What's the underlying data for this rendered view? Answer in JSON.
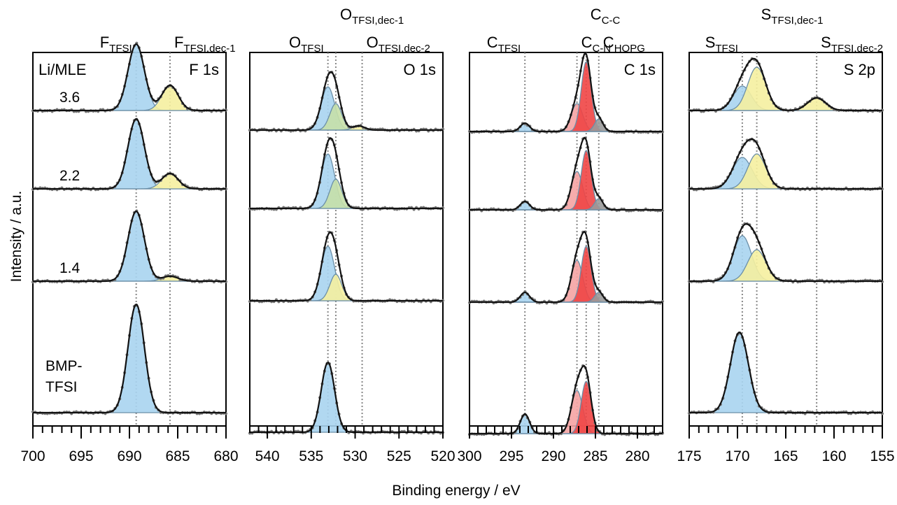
{
  "figure": {
    "ylabel": "Intensity / a.u.",
    "xlabel": "Binding energy / eV"
  },
  "chart_data": [
    {
      "type": "line",
      "panel": "F 1s",
      "title": "F 1s",
      "reversed_x": true,
      "xlim": [
        700,
        680
      ],
      "xticks": [
        700,
        695,
        690,
        685,
        680
      ],
      "grid": false,
      "corner_label": "Li/MLE",
      "ref_lines": [
        {
          "x": 689.3,
          "label": "F",
          "sub": "TFSI"
        },
        {
          "x": 685.8,
          "label": "F",
          "sub": "TFSI,dec-1"
        }
      ],
      "traces": [
        {
          "sample": "3.6",
          "components": [
            {
              "center": 689.3,
              "fwhm": 2.0,
              "height": 0.95,
              "fill": "blue"
            },
            {
              "center": 685.8,
              "fwhm": 2.0,
              "height": 0.36,
              "fill": "yellow"
            }
          ]
        },
        {
          "sample": "2.2",
          "components": [
            {
              "center": 689.3,
              "fwhm": 2.0,
              "height": 1.0,
              "fill": "blue"
            },
            {
              "center": 685.8,
              "fwhm": 2.0,
              "height": 0.22,
              "fill": "yellow"
            }
          ]
        },
        {
          "sample": "1.4",
          "components": [
            {
              "center": 689.3,
              "fwhm": 2.0,
              "height": 1.0,
              "fill": "blue"
            },
            {
              "center": 685.8,
              "fwhm": 2.0,
              "height": 0.07,
              "fill": "yellow"
            }
          ]
        },
        {
          "sample": "BMP-\nTFSI",
          "components": [
            {
              "center": 689.3,
              "fwhm": 2.0,
              "height": 1.55,
              "fill": "blue"
            }
          ]
        }
      ]
    },
    {
      "type": "line",
      "panel": "O 1s",
      "title": "O 1s",
      "reversed_x": true,
      "xlim": [
        542,
        520
      ],
      "xticks": [
        540,
        535,
        530,
        525,
        520
      ],
      "grid": false,
      "ref_lines": [
        {
          "x": 533.1,
          "label": "O",
          "sub": "TFSI"
        },
        {
          "x": 532.2,
          "label": "O",
          "sub": "TFSI,dec-1"
        },
        {
          "x": 529.2,
          "label": "O",
          "sub": "TFSI,dec-2"
        }
      ],
      "traces": [
        {
          "components": [
            {
              "center": 533.1,
              "fwhm": 1.8,
              "height": 0.62,
              "fill": "blue"
            },
            {
              "center": 532.2,
              "fwhm": 1.6,
              "height": 0.38,
              "fill": "green"
            },
            {
              "center": 529.6,
              "fwhm": 1.6,
              "height": 0.06,
              "fill": "yellow"
            }
          ]
        },
        {
          "components": [
            {
              "center": 533.1,
              "fwhm": 1.8,
              "height": 0.78,
              "fill": "blue"
            },
            {
              "center": 532.2,
              "fwhm": 1.6,
              "height": 0.42,
              "fill": "green"
            }
          ]
        },
        {
          "components": [
            {
              "center": 533.1,
              "fwhm": 1.8,
              "height": 0.78,
              "fill": "blue"
            },
            {
              "center": 532.2,
              "fwhm": 1.6,
              "height": 0.38,
              "fill": "yellow"
            }
          ]
        },
        {
          "components": [
            {
              "center": 533.1,
              "fwhm": 1.8,
              "height": 1.0,
              "fill": "blue"
            }
          ]
        }
      ]
    },
    {
      "type": "line",
      "panel": "C 1s",
      "title": "C 1s",
      "reversed_x": true,
      "xlim": [
        300,
        277
      ],
      "xticks": [
        300,
        295,
        290,
        285,
        280
      ],
      "grid": false,
      "ref_lines": [
        {
          "x": 293.4,
          "label": "C",
          "sub": "TFSI"
        },
        {
          "x": 287.2,
          "label": "C",
          "sub": "C-N"
        },
        {
          "x": 286.1,
          "label": "C",
          "sub": "C-C"
        },
        {
          "x": 284.6,
          "label": "C",
          "sub": "HOPG"
        }
      ],
      "traces": [
        {
          "components": [
            {
              "center": 293.4,
              "fwhm": 1.3,
              "height": 0.12,
              "fill": "blue"
            },
            {
              "center": 287.2,
              "fwhm": 1.6,
              "height": 0.4,
              "fill": "pink"
            },
            {
              "center": 286.1,
              "fwhm": 1.4,
              "height": 1.0,
              "fill": "red"
            },
            {
              "center": 284.6,
              "fwhm": 1.2,
              "height": 0.18,
              "fill": "gray"
            }
          ]
        },
        {
          "components": [
            {
              "center": 293.4,
              "fwhm": 1.3,
              "height": 0.12,
              "fill": "blue"
            },
            {
              "center": 287.2,
              "fwhm": 1.6,
              "height": 0.55,
              "fill": "pink"
            },
            {
              "center": 286.1,
              "fwhm": 1.4,
              "height": 0.85,
              "fill": "red"
            },
            {
              "center": 284.6,
              "fwhm": 1.2,
              "height": 0.16,
              "fill": "gray"
            }
          ]
        },
        {
          "components": [
            {
              "center": 293.4,
              "fwhm": 1.3,
              "height": 0.14,
              "fill": "blue"
            },
            {
              "center": 287.2,
              "fwhm": 1.6,
              "height": 0.6,
              "fill": "pink"
            },
            {
              "center": 286.1,
              "fwhm": 1.4,
              "height": 0.8,
              "fill": "red"
            },
            {
              "center": 284.6,
              "fwhm": 1.2,
              "height": 0.14,
              "fill": "gray"
            }
          ]
        },
        {
          "components": [
            {
              "center": 293.4,
              "fwhm": 1.3,
              "height": 0.28,
              "fill": "blue"
            },
            {
              "center": 287.2,
              "fwhm": 1.6,
              "height": 0.62,
              "fill": "pink"
            },
            {
              "center": 286.1,
              "fwhm": 1.4,
              "height": 0.75,
              "fill": "red"
            }
          ]
        }
      ]
    },
    {
      "type": "line",
      "panel": "S 2p",
      "title": "S 2p",
      "reversed_x": true,
      "xlim": [
        175,
        155
      ],
      "xticks": [
        175,
        170,
        165,
        160,
        155
      ],
      "grid": false,
      "ref_lines": [
        {
          "x": 169.5,
          "label": "S",
          "sub": "TFSI"
        },
        {
          "x": 168.0,
          "label": "S",
          "sub": "TFSI,dec-1"
        },
        {
          "x": 161.8,
          "label": "S",
          "sub": "TFSI,dec-2"
        }
      ],
      "traces": [
        {
          "components": [
            {
              "center": 169.5,
              "fwhm": 2.2,
              "height": 0.35,
              "fill": "blue"
            },
            {
              "center": 168.0,
              "fwhm": 2.2,
              "height": 0.62,
              "fill": "yellow"
            },
            {
              "center": 161.8,
              "fwhm": 2.2,
              "height": 0.18,
              "fill": "yellow"
            }
          ]
        },
        {
          "components": [
            {
              "center": 169.5,
              "fwhm": 2.4,
              "height": 0.45,
              "fill": "blue"
            },
            {
              "center": 168.0,
              "fwhm": 2.2,
              "height": 0.5,
              "fill": "yellow"
            }
          ]
        },
        {
          "components": [
            {
              "center": 169.5,
              "fwhm": 2.2,
              "height": 0.65,
              "fill": "blue"
            },
            {
              "center": 168.0,
              "fwhm": 2.2,
              "height": 0.45,
              "fill": "yellow"
            }
          ]
        },
        {
          "components": [
            {
              "center": 169.8,
              "fwhm": 2.2,
              "height": 1.15,
              "fill": "blue"
            }
          ]
        }
      ]
    }
  ],
  "colors": {
    "blue": "#a8d4ef",
    "yellow": "#f5f0a0",
    "green": "#c6e0a8",
    "pink": "#f5a3a3",
    "red": "#f04545",
    "gray": "#9a9a9a",
    "envelope": "#111111",
    "component_edge": "#6b8fa8",
    "data_points": "#777777"
  }
}
